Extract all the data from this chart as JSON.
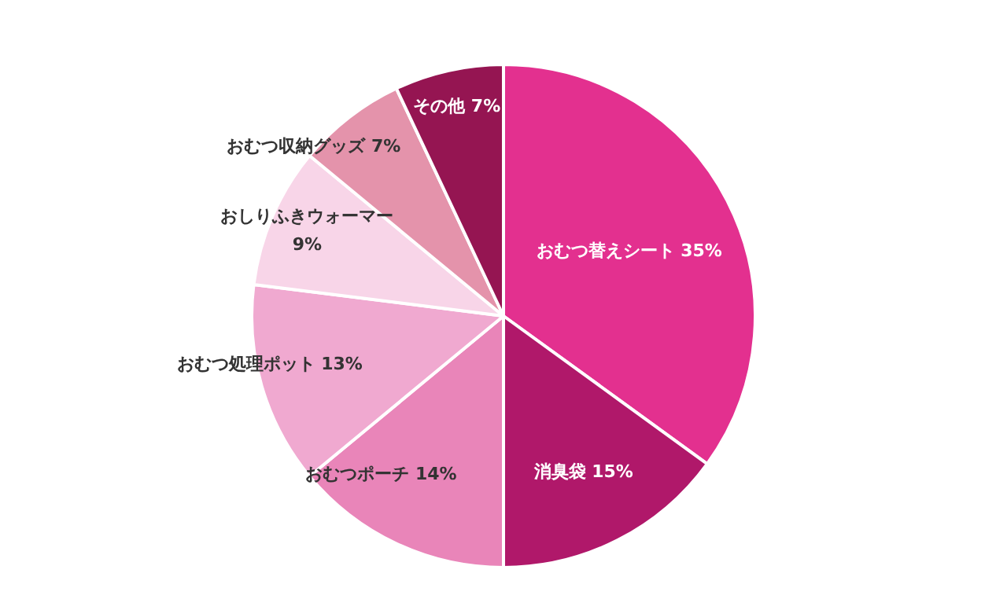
{
  "chart_data": {
    "type": "pie",
    "categories": [
      "おむつ替えシート",
      "消臭袋",
      "おむつポーチ",
      "おむつ処理ポット",
      "おしりふきウォーマー",
      "おむつ収納グッズ",
      "その他"
    ],
    "values": [
      35,
      15,
      14,
      13,
      9,
      7,
      7
    ],
    "value_labels": [
      "35%",
      "15%",
      "14%",
      "13%",
      "9%",
      "7%",
      "7%"
    ],
    "colors": [
      "#e3308f",
      "#b0186a",
      "#e985b9",
      "#f0a9d0",
      "#f8d5e8",
      "#e493ab",
      "#951552"
    ],
    "legend": false
  }
}
